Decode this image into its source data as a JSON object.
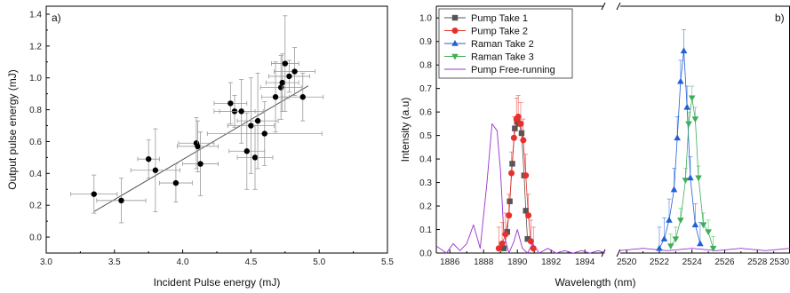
{
  "chart_data": [
    {
      "type": "scatter",
      "panel_label": "a)",
      "xlabel": "Incident Pulse energy (mJ)",
      "ylabel": "Output pulse energy (mJ)",
      "xlim": [
        3.0,
        5.5
      ],
      "ylim": [
        -0.1,
        1.45
      ],
      "xticks": [
        "3.0",
        "3.5",
        "4.0",
        "4.5",
        "5.0",
        "5.5"
      ],
      "yticks": [
        "0.0",
        "0.2",
        "0.4",
        "0.6",
        "0.8",
        "1.0",
        "1.2",
        "1.4"
      ],
      "grid": false,
      "points": [
        {
          "x": 3.35,
          "y": 0.27,
          "xerr": 0.17,
          "yerr": 0.12
        },
        {
          "x": 3.55,
          "y": 0.23,
          "xerr": 0.18,
          "yerr": 0.14
        },
        {
          "x": 3.75,
          "y": 0.49,
          "xerr": 0.08,
          "yerr": 0.12
        },
        {
          "x": 3.8,
          "y": 0.42,
          "xerr": 0.18,
          "yerr": 0.26
        },
        {
          "x": 3.95,
          "y": 0.34,
          "xerr": 0.12,
          "yerr": 0.12
        },
        {
          "x": 4.1,
          "y": 0.59,
          "xerr": 0.13,
          "yerr": 0.16
        },
        {
          "x": 4.11,
          "y": 0.57,
          "xerr": 0.15,
          "yerr": 0.16
        },
        {
          "x": 4.13,
          "y": 0.46,
          "xerr": 0.13,
          "yerr": 0.2
        },
        {
          "x": 4.35,
          "y": 0.84,
          "xerr": 0.12,
          "yerr": 0.13
        },
        {
          "x": 4.38,
          "y": 0.79,
          "xerr": 0.15,
          "yerr": 0.1
        },
        {
          "x": 4.43,
          "y": 0.79,
          "xerr": 0.16,
          "yerr": 0.2
        },
        {
          "x": 4.47,
          "y": 0.54,
          "xerr": 0.13,
          "yerr": 0.24
        },
        {
          "x": 4.5,
          "y": 0.7,
          "xerr": 0.17,
          "yerr": 0.3
        },
        {
          "x": 4.53,
          "y": 0.5,
          "xerr": 0.13,
          "yerr": 0.2
        },
        {
          "x": 4.55,
          "y": 0.73,
          "xerr": 0.15,
          "yerr": 0.3
        },
        {
          "x": 4.6,
          "y": 0.65,
          "xerr": 0.42,
          "yerr": 0.2
        },
        {
          "x": 4.68,
          "y": 0.88,
          "xerr": 0.1,
          "yerr": 0.22
        },
        {
          "x": 4.72,
          "y": 0.94,
          "xerr": 0.15,
          "yerr": 0.2
        },
        {
          "x": 4.73,
          "y": 0.97,
          "xerr": 0.12,
          "yerr": 0.18
        },
        {
          "x": 4.75,
          "y": 1.09,
          "xerr": 0.1,
          "yerr": 0.3
        },
        {
          "x": 4.78,
          "y": 1.01,
          "xerr": 0.15,
          "yerr": 0.1
        },
        {
          "x": 4.82,
          "y": 1.04,
          "xerr": 0.15,
          "yerr": 0.15
        },
        {
          "x": 4.88,
          "y": 0.88,
          "xerr": 0.15,
          "yerr": 0.15
        }
      ],
      "fit_line": {
        "x": [
          3.35,
          4.92
        ],
        "y": [
          0.16,
          0.95
        ]
      }
    },
    {
      "type": "line",
      "panel_label": "b)",
      "xlabel": "Wavelength (nm)",
      "ylabel": "Intensity (a.u)",
      "ylim": [
        0.0,
        1.05
      ],
      "yticks": [
        "0.0",
        "0.1",
        "0.2",
        "0.3",
        "0.4",
        "0.5",
        "0.6",
        "0.7",
        "0.8",
        "0.9",
        "1.0"
      ],
      "axis_break": true,
      "xlim_left": [
        1885.2,
        1895.2
      ],
      "xlim_right": [
        2519.5,
        2530.0
      ],
      "xticks_left": [
        "1886",
        "1888",
        "1890",
        "1892",
        "1894"
      ],
      "xticks_right": [
        "2520",
        "2522",
        "2524",
        "2526",
        "2528",
        "2530"
      ],
      "grid": false,
      "legend_position": "top-left",
      "legend": [
        "Pump Take 1",
        "Pump Take 2",
        "Raman Take 2",
        "Raman Take 3",
        "Pump Free-running"
      ],
      "series": [
        {
          "name": "Pump Take 1",
          "color": "#555555",
          "marker": "square",
          "x": [
            1889.2,
            1889.4,
            1889.55,
            1889.7,
            1889.85,
            1890.0,
            1890.1,
            1890.25,
            1890.4,
            1890.5,
            1890.6
          ],
          "y": [
            0.02,
            0.09,
            0.22,
            0.38,
            0.53,
            0.56,
            0.55,
            0.51,
            0.33,
            0.18,
            0.06
          ]
        },
        {
          "name": "Pump Take 2",
          "color": "#e8302b",
          "marker": "circle",
          "x": [
            1888.9,
            1889.1,
            1889.3,
            1889.5,
            1889.65,
            1889.8,
            1889.95,
            1890.05,
            1890.2,
            1890.35,
            1890.5,
            1890.65,
            1890.8,
            1890.95
          ],
          "y": [
            0.02,
            0.04,
            0.08,
            0.16,
            0.34,
            0.49,
            0.57,
            0.58,
            0.55,
            0.48,
            0.33,
            0.16,
            0.05,
            0.02
          ],
          "yerr": 0.09
        },
        {
          "name": "Raman Take 2",
          "color": "#2060d8",
          "marker": "triangle-up",
          "x": [
            2522.0,
            2522.3,
            2522.6,
            2522.9,
            2523.1,
            2523.3,
            2523.5,
            2523.7,
            2523.9,
            2524.2,
            2524.5
          ],
          "y": [
            0.02,
            0.06,
            0.14,
            0.27,
            0.49,
            0.73,
            0.86,
            0.62,
            0.32,
            0.12,
            0.04
          ],
          "yerr": 0.09
        },
        {
          "name": "Raman Take 3",
          "color": "#3fae5a",
          "marker": "triangle-down",
          "x": [
            2522.7,
            2523.0,
            2523.3,
            2523.6,
            2523.8,
            2524.0,
            2524.2,
            2524.4,
            2524.7,
            2525.0,
            2525.3
          ],
          "y": [
            0.03,
            0.06,
            0.14,
            0.31,
            0.55,
            0.66,
            0.57,
            0.32,
            0.12,
            0.09,
            0.02
          ],
          "yerr": 0.05
        },
        {
          "name": "Pump Free-running",
          "color": "#9b30d0",
          "marker": "none",
          "x": [
            1885.2,
            1885.8,
            1886.2,
            1886.6,
            1887.0,
            1887.4,
            1887.8,
            1888.2,
            1888.5,
            1888.8,
            1889.0,
            1889.2,
            1889.5,
            1889.8,
            1890.0,
            1890.3,
            1890.6,
            1890.9,
            1891.3,
            1891.8,
            1892.3,
            1892.8,
            1893.3,
            1893.8,
            1894.3,
            1894.8,
            1895.2,
            2519.5,
            2521.0,
            2522.5,
            2524.0,
            2525.5,
            2527.0,
            2528.5,
            2530.0
          ],
          "y": [
            0.03,
            0.0,
            0.04,
            0.01,
            0.04,
            0.12,
            0.02,
            0.3,
            0.55,
            0.52,
            0.35,
            0.08,
            0.0,
            0.05,
            0.1,
            0.02,
            0.0,
            0.04,
            0.0,
            0.02,
            0.0,
            0.01,
            0.0,
            0.01,
            0.0,
            0.01,
            0.0,
            0.01,
            0.02,
            0.01,
            0.02,
            0.01,
            0.02,
            0.01,
            0.02
          ]
        }
      ]
    }
  ]
}
